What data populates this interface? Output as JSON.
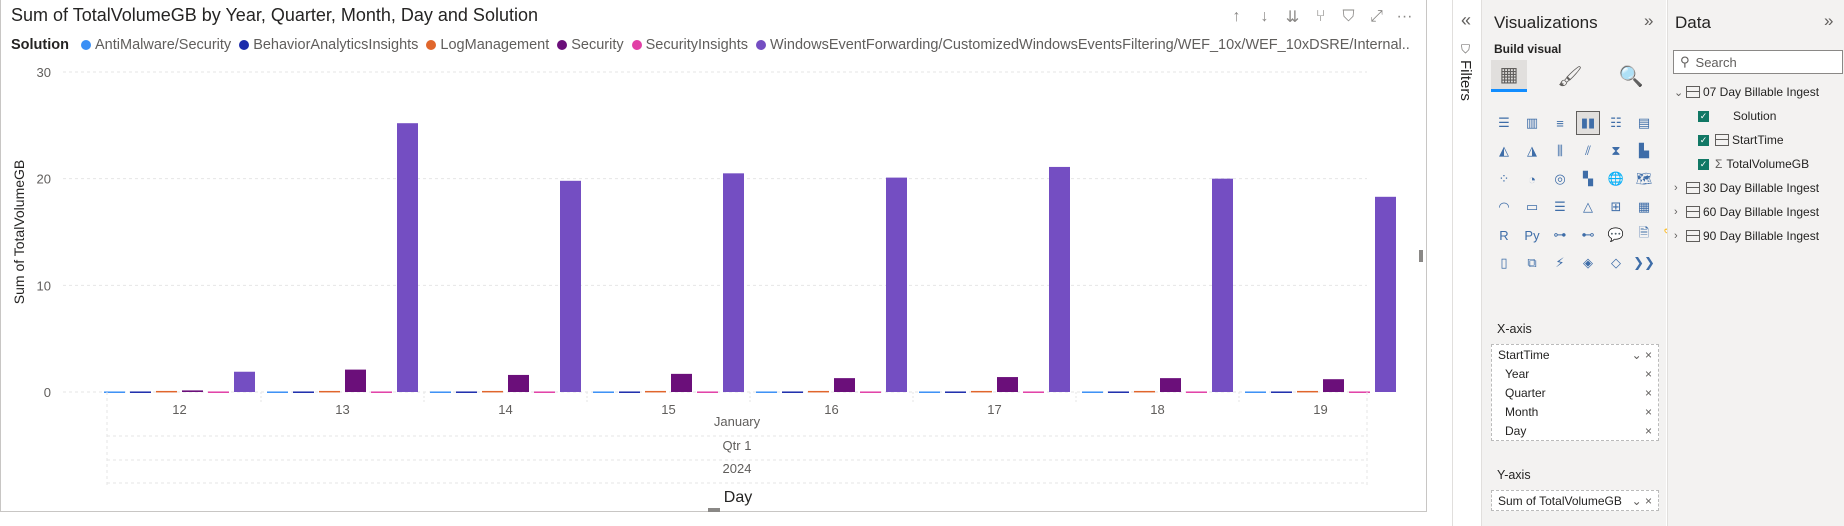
{
  "visual": {
    "title": "Sum of TotalVolumeGB by Year, Quarter, Month, Day and Solution",
    "header_icons": [
      "arrow-up-icon",
      "arrow-down-icon",
      "double-arrow-down-icon",
      "expand-hierarchy-icon",
      "filter-icon",
      "focus-mode-icon",
      "more-options-icon"
    ],
    "header_glyphs": [
      "↑",
      "↓",
      "⇊",
      "⑂",
      "⛉",
      "⤢",
      "···"
    ],
    "legend_title": "Solution",
    "legend_overflow": "..."
  },
  "chart_data": {
    "type": "bar",
    "title": "Sum of TotalVolumeGB by Year, Quarter, Month, Day and Solution",
    "ylabel": "Sum of TotalVolumeGB",
    "xlabel": "Day",
    "ylim": [
      0,
      30
    ],
    "yticks": [
      0,
      10,
      20,
      30
    ],
    "grid": true,
    "legend_position": "top-left",
    "categories": [
      "12",
      "13",
      "14",
      "15",
      "16",
      "17",
      "18",
      "19"
    ],
    "hierarchy_labels": {
      "month": "January",
      "quarter": "Qtr 1",
      "year": "2024"
    },
    "series": [
      {
        "name": "AntiMalware/Security",
        "color": "#3a8ff5",
        "values": [
          0.05,
          0.05,
          0.05,
          0.05,
          0.05,
          0.05,
          0.05,
          0.05
        ]
      },
      {
        "name": "BehaviorAnalyticsInsights",
        "color": "#1b2bab",
        "values": [
          0.05,
          0.05,
          0.05,
          0.05,
          0.05,
          0.05,
          0.05,
          0.05
        ]
      },
      {
        "name": "LogManagement",
        "color": "#e0662c",
        "values": [
          0.1,
          0.1,
          0.1,
          0.1,
          0.1,
          0.1,
          0.1,
          0.1
        ]
      },
      {
        "name": "Security",
        "color": "#6b0f7a",
        "values": [
          0.15,
          2.1,
          1.6,
          1.7,
          1.3,
          1.4,
          1.3,
          1.2
        ]
      },
      {
        "name": "SecurityInsights",
        "color": "#e13fa6",
        "values": [
          0.05,
          0.05,
          0.05,
          0.05,
          0.05,
          0.05,
          0.05,
          0.05
        ]
      },
      {
        "name": "WindowsEventForwarding/CustomizedWindowsEventsFiltering/WEF_10x/WEF_10xDSRE/Internal...",
        "color": "#744ec2",
        "values": [
          1.9,
          25.2,
          19.8,
          20.5,
          20.1,
          21.1,
          20.0,
          18.3
        ]
      }
    ]
  },
  "filters": {
    "label": "Filters",
    "collapse_glyph": "«"
  },
  "viz_pane": {
    "title": "Visualizations",
    "build_visual": "Build visual",
    "expand_glyph": "»",
    "mode_icons": [
      "build-visual-icon",
      "format-visual-icon",
      "analytics-icon"
    ],
    "mode_glyphs": [
      "▦",
      "🖌",
      "🔍"
    ],
    "grid_icons": [
      {
        "name": "stacked-bar-icon",
        "glyph": "☰"
      },
      {
        "name": "stacked-column-icon",
        "glyph": "▥"
      },
      {
        "name": "clustered-bar-icon",
        "glyph": "≡"
      },
      {
        "name": "clustered-column-icon",
        "glyph": "▮▮"
      },
      {
        "name": "100-stacked-bar-icon",
        "glyph": "☷"
      },
      {
        "name": "100-stacked-column-icon",
        "glyph": "▤"
      },
      {
        "name": "line-chart-icon",
        "glyph": "⩘"
      },
      {
        "name": "area-chart-icon",
        "glyph": "◭"
      },
      {
        "name": "stacked-area-icon",
        "glyph": "◮"
      },
      {
        "name": "line-clustered-column-icon",
        "glyph": "⫼"
      },
      {
        "name": "line-stacked-column-icon",
        "glyph": "⫽"
      },
      {
        "name": "ribbon-chart-icon",
        "glyph": "⧗"
      },
      {
        "name": "waterfall-icon",
        "glyph": "▙"
      },
      {
        "name": "funnel-icon",
        "glyph": "▽"
      },
      {
        "name": "scatter-icon",
        "glyph": "⁘"
      },
      {
        "name": "pie-chart-icon",
        "glyph": "◔"
      },
      {
        "name": "donut-icon",
        "glyph": "◎"
      },
      {
        "name": "treemap-icon",
        "glyph": "▚"
      },
      {
        "name": "map-icon",
        "glyph": "🌐"
      },
      {
        "name": "filled-map-icon",
        "glyph": "🗺"
      },
      {
        "name": "azure-map-icon",
        "glyph": "➤"
      },
      {
        "name": "gauge-icon",
        "glyph": "◠"
      },
      {
        "name": "card-icon",
        "glyph": "▭"
      },
      {
        "name": "multi-row-card-icon",
        "glyph": "☰"
      },
      {
        "name": "kpi-icon",
        "glyph": "△"
      },
      {
        "name": "slicer-icon",
        "glyph": "⊞"
      },
      {
        "name": "table-icon",
        "glyph": "▦"
      },
      {
        "name": "matrix-icon",
        "glyph": "▩"
      },
      {
        "name": "r-script-icon",
        "glyph": "R"
      },
      {
        "name": "python-visual-icon",
        "glyph": "Py"
      },
      {
        "name": "key-influencers-icon",
        "glyph": "⊶"
      },
      {
        "name": "decomposition-tree-icon",
        "glyph": "⊷"
      },
      {
        "name": "qa-icon",
        "glyph": "💬"
      },
      {
        "name": "smart-narrative-icon",
        "glyph": "🗎"
      },
      {
        "name": "metrics-icon",
        "glyph": "🏆"
      },
      {
        "name": "paginated-report-icon",
        "glyph": "▯"
      },
      {
        "name": "power-apps-icon",
        "glyph": "⧉"
      },
      {
        "name": "power-automate-icon",
        "glyph": "⚡"
      },
      {
        "name": "arcgis-icon",
        "glyph": "◈"
      },
      {
        "name": "diamond-icon",
        "glyph": "◇"
      },
      {
        "name": "chevrons-icon",
        "glyph": "❯❯"
      },
      {
        "name": "more-visuals-icon",
        "glyph": "···"
      }
    ],
    "xaxis_label": "X-axis",
    "xaxis_field": "StartTime",
    "xaxis_sublevels": [
      "Year",
      "Quarter",
      "Month",
      "Day"
    ],
    "yaxis_label": "Y-axis",
    "yaxis_field": "Sum of TotalVolumeGB",
    "chevron": "⌄",
    "remove": "×"
  },
  "data_pane": {
    "title": "Data",
    "expand_glyph": "»",
    "search_placeholder": "Search",
    "tables": [
      {
        "label": "07 Day Billable Ingest",
        "expanded": true
      },
      {
        "label": "30 Day Billable Ingest",
        "expanded": false
      },
      {
        "label": "60 Day Billable Ingest",
        "expanded": false
      },
      {
        "label": "90 Day Billable Ingest",
        "expanded": false
      }
    ],
    "fields": [
      {
        "label": "Solution",
        "checked": true,
        "kind": "text"
      },
      {
        "label": "StartTime",
        "checked": true,
        "kind": "date"
      },
      {
        "label": "TotalVolumeGB",
        "checked": true,
        "kind": "sum"
      }
    ],
    "expand_chevron": "⌄",
    "collapse_chevron": "›",
    "sigma": "Σ"
  }
}
